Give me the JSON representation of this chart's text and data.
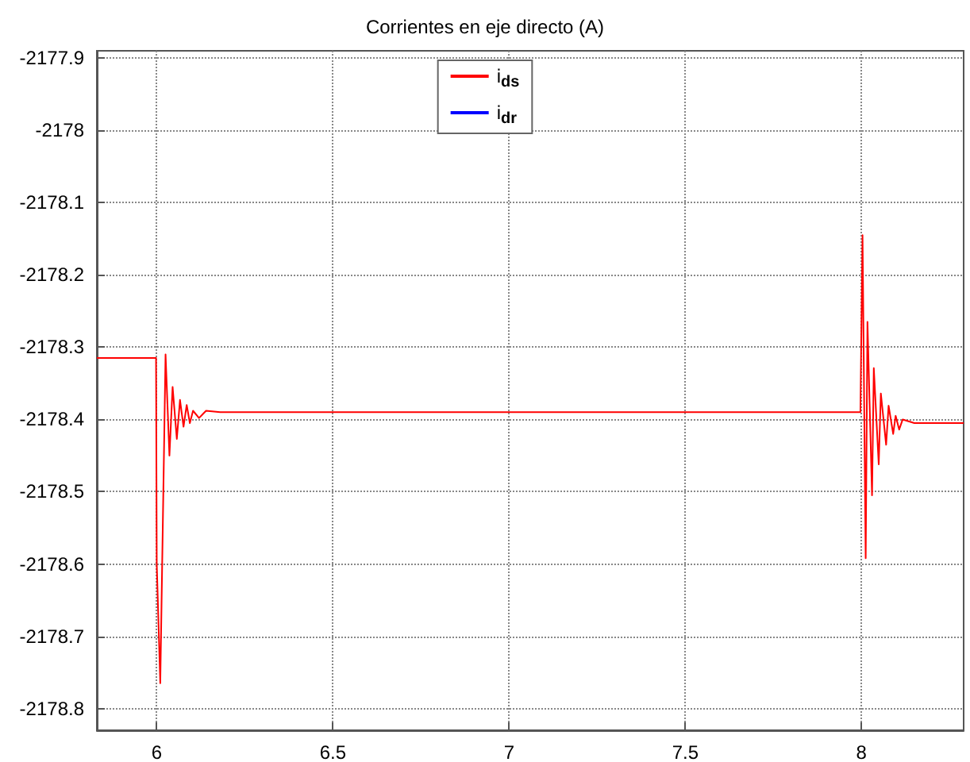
{
  "chart_data": {
    "type": "line",
    "title": "Corrientes en eje directo (A)",
    "xlim": [
      5.83,
      8.29
    ],
    "xticks": [
      6,
      6.5,
      7,
      7.5,
      8
    ],
    "ylim": [
      -2178.83,
      -2177.89
    ],
    "yticks": [
      -2177.9,
      -2178,
      -2178.1,
      -2178.2,
      -2178.3,
      -2178.4,
      -2178.5,
      -2178.6,
      -2178.7,
      -2178.8
    ],
    "grid": true,
    "legend": "top",
    "marker": "none",
    "line_style": "solid",
    "series": [
      {
        "name": "i$_{ds}$",
        "color": "#ff0000",
        "x": [
          5.83,
          5.998,
          6.0,
          6.01,
          6.025,
          6.036,
          6.045,
          6.057,
          6.066,
          6.076,
          6.085,
          6.094,
          6.103,
          6.12,
          6.14,
          6.18,
          7.997,
          8.003,
          8.012,
          8.017,
          8.03,
          8.035,
          8.049,
          8.055,
          8.07,
          8.077,
          8.09,
          8.097,
          8.107,
          8.117,
          8.15,
          8.29
        ],
        "values": [
          -2178.315,
          -2178.315,
          -2178.6,
          -2178.765,
          -2178.31,
          -2178.45,
          -2178.355,
          -2178.427,
          -2178.373,
          -2178.41,
          -2178.38,
          -2178.405,
          -2178.388,
          -2178.398,
          -2178.388,
          -2178.39,
          -2178.39,
          -2178.145,
          -2178.592,
          -2178.265,
          -2178.505,
          -2178.329,
          -2178.462,
          -2178.364,
          -2178.435,
          -2178.381,
          -2178.42,
          -2178.395,
          -2178.414,
          -2178.4,
          -2178.405,
          -2178.405
        ]
      },
      {
        "name": "i$_{dr}$",
        "color": "#0000ff"
      }
    ]
  }
}
